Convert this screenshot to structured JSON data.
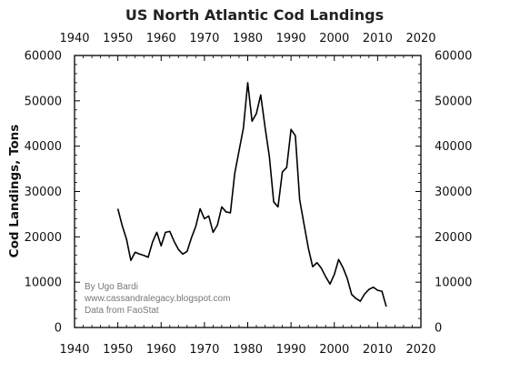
{
  "chart_data": {
    "type": "line",
    "title": "US North Atlantic Cod Landings",
    "xlabel": "",
    "ylabel": "Cod Landings, Tons",
    "xlim": [
      1940,
      2020
    ],
    "ylim": [
      0,
      60000
    ],
    "x_ticks": [
      "1940",
      "1950",
      "1960",
      "1970",
      "1980",
      "1990",
      "2000",
      "2010",
      "2020"
    ],
    "y_ticks": [
      "0",
      "10000",
      "20000",
      "30000",
      "40000",
      "50000",
      "60000"
    ],
    "grid": false,
    "line_color": "#000000",
    "annotations": [
      "By Ugo Bardi",
      "www.cassandralegacy.blogspot.com",
      "Data from FaoStat"
    ],
    "series": [
      {
        "x": [
          1950,
          1951,
          1952,
          1953,
          1954,
          1955,
          1956,
          1957,
          1958,
          1959,
          1960,
          1961,
          1962,
          1963,
          1964,
          1965,
          1966,
          1967,
          1968,
          1969,
          1970,
          1971,
          1972,
          1973,
          1974,
          1975,
          1976,
          1977,
          1978,
          1979,
          1980,
          1981,
          1982,
          1983,
          1984,
          1985,
          1986,
          1987,
          1988,
          1989,
          1990,
          1991,
          1992,
          1993,
          1994,
          1995,
          1996,
          1997,
          1998,
          1999,
          2000,
          2001,
          2002,
          2003,
          2004,
          2005,
          2006,
          2007,
          2008,
          2009,
          2010,
          2011,
          2012
        ],
        "y": [
          26200,
          22500,
          19500,
          14800,
          16600,
          16200,
          15900,
          15500,
          18800,
          21000,
          18000,
          21000,
          21200,
          19000,
          17200,
          16200,
          16800,
          19800,
          22300,
          26200,
          24000,
          24600,
          21000,
          22600,
          26600,
          25500,
          25300,
          34000,
          39000,
          44000,
          54000,
          45500,
          47200,
          51300,
          44200,
          37700,
          27700,
          26600,
          34300,
          35300,
          43700,
          42300,
          28200,
          22800,
          17500,
          13400,
          14300,
          13100,
          11200,
          9600,
          11700,
          15000,
          13200,
          10800,
          7300,
          6400,
          5800,
          7400,
          8400,
          8900,
          8200,
          8000,
          4600
        ]
      }
    ]
  }
}
